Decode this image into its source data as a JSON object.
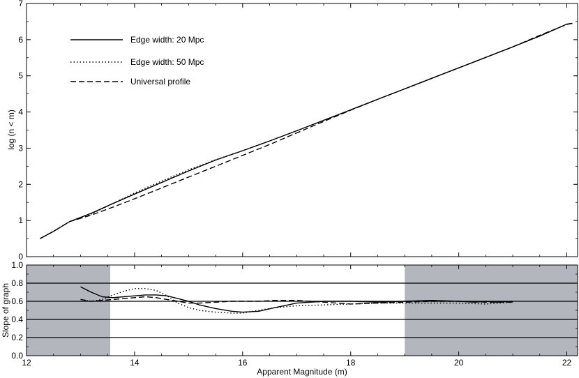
{
  "chart_data": [
    {
      "type": "line",
      "panel": "top",
      "xlabel": "",
      "ylabel": "log (n < m)",
      "xlim": [
        12,
        22.2
      ],
      "ylim": [
        0,
        7
      ],
      "x_ticks": [
        12,
        14,
        16,
        18,
        20,
        22
      ],
      "y_ticks": [
        0,
        1,
        2,
        3,
        4,
        5,
        6,
        7
      ],
      "legend_position": "top-left",
      "series": [
        {
          "name": "Edge width: 20 Mpc",
          "style": "solid",
          "x": [
            12.25,
            12.5,
            12.8,
            13.2,
            13.6,
            14.0,
            14.5,
            15.0,
            15.5,
            16.0,
            16.5,
            17.0,
            17.5,
            18.0,
            18.5,
            19.0,
            19.5,
            20.0,
            20.5,
            21.0,
            21.5,
            22.0,
            22.1
          ],
          "y": [
            0.5,
            0.7,
            0.97,
            1.2,
            1.47,
            1.73,
            2.05,
            2.37,
            2.67,
            2.93,
            3.2,
            3.48,
            3.77,
            4.06,
            4.35,
            4.64,
            4.93,
            5.22,
            5.51,
            5.8,
            6.1,
            6.43,
            6.45
          ]
        },
        {
          "name": "Edge width: 50 Mpc",
          "style": "dotted",
          "x": [
            12.25,
            12.5,
            12.8,
            13.2,
            13.6,
            14.0,
            14.5,
            15.0,
            15.5,
            16.0,
            16.5,
            17.0,
            17.5,
            18.0,
            18.5,
            19.0,
            19.5,
            20.0,
            20.5,
            21.0,
            21.5,
            22.0,
            22.1
          ],
          "y": [
            0.5,
            0.7,
            0.97,
            1.18,
            1.47,
            1.76,
            2.09,
            2.4,
            2.68,
            2.93,
            3.2,
            3.48,
            3.77,
            4.06,
            4.35,
            4.64,
            4.93,
            5.22,
            5.51,
            5.8,
            6.1,
            6.43,
            6.45
          ]
        },
        {
          "name": "Universal profile",
          "style": "dashed",
          "x": [
            12.25,
            12.5,
            12.8,
            13.2,
            13.6,
            14.0,
            14.5,
            15.0,
            15.5,
            16.0,
            16.5,
            17.0,
            17.5,
            18.0,
            18.5,
            19.0,
            19.5,
            20.0,
            20.5,
            21.0,
            21.5,
            22.0,
            22.1
          ],
          "y": [
            0.5,
            0.7,
            0.97,
            1.15,
            1.37,
            1.6,
            1.9,
            2.2,
            2.5,
            2.8,
            3.1,
            3.42,
            3.74,
            4.05,
            4.35,
            4.64,
            4.93,
            5.22,
            5.51,
            5.8,
            6.12,
            6.42,
            6.45
          ]
        }
      ]
    },
    {
      "type": "line",
      "panel": "bottom",
      "xlabel": "Apparent Magnitude (m)",
      "ylabel": "Slope of graph",
      "xlim": [
        12,
        22.2
      ],
      "ylim": [
        0,
        1.0
      ],
      "x_ticks": [
        12,
        14,
        16,
        18,
        20,
        22
      ],
      "y_ticks": [
        0.0,
        0.2,
        0.4,
        0.6,
        0.8,
        1.0
      ],
      "y_gridlines": [
        0.2,
        0.4,
        0.6,
        0.8
      ],
      "shaded_x_ranges": [
        [
          12,
          13.55
        ],
        [
          19.0,
          22.2
        ]
      ],
      "series": [
        {
          "name": "Edge width: 20 Mpc",
          "style": "solid",
          "x": [
            13.0,
            13.2,
            13.4,
            13.6,
            13.8,
            14.0,
            14.2,
            14.4,
            14.6,
            14.8,
            15.0,
            15.2,
            15.5,
            15.8,
            16.0,
            16.3,
            16.6,
            17.0,
            17.5,
            18.0,
            18.5,
            19.0,
            19.5,
            20.0,
            20.3,
            20.5,
            20.7,
            21.0
          ],
          "y": [
            0.76,
            0.7,
            0.65,
            0.64,
            0.65,
            0.66,
            0.67,
            0.67,
            0.66,
            0.63,
            0.6,
            0.56,
            0.52,
            0.49,
            0.48,
            0.49,
            0.53,
            0.58,
            0.6,
            0.6,
            0.59,
            0.6,
            0.61,
            0.6,
            0.59,
            0.6,
            0.59,
            0.6
          ]
        },
        {
          "name": "Edge width: 50 Mpc",
          "style": "dotted",
          "x": [
            13.0,
            13.2,
            13.4,
            13.6,
            13.8,
            14.0,
            14.2,
            14.4,
            14.6,
            14.8,
            15.0,
            15.2,
            15.5,
            15.8,
            16.0,
            16.3,
            16.6,
            17.0,
            17.5,
            18.0,
            18.5,
            19.0,
            19.5,
            20.0,
            20.5,
            21.0
          ],
          "y": [
            0.62,
            0.6,
            0.62,
            0.67,
            0.71,
            0.74,
            0.74,
            0.72,
            0.66,
            0.58,
            0.53,
            0.5,
            0.48,
            0.47,
            0.47,
            0.5,
            0.53,
            0.55,
            0.56,
            0.57,
            0.58,
            0.58,
            0.58,
            0.58,
            0.57,
            0.59
          ]
        },
        {
          "name": "Universal profile",
          "style": "dashed",
          "x": [
            13.0,
            13.2,
            13.4,
            13.6,
            13.8,
            14.0,
            14.2,
            14.4,
            14.6,
            14.8,
            15.0,
            15.2,
            15.5,
            15.8,
            16.0,
            16.3,
            16.6,
            17.0,
            17.5,
            18.0,
            18.5,
            19.0,
            19.5,
            20.0,
            20.5,
            21.0
          ],
          "y": [
            0.62,
            0.6,
            0.61,
            0.62,
            0.63,
            0.64,
            0.65,
            0.64,
            0.62,
            0.6,
            0.58,
            0.58,
            0.59,
            0.6,
            0.6,
            0.6,
            0.61,
            0.61,
            0.59,
            0.57,
            0.58,
            0.59,
            0.6,
            0.6,
            0.59,
            0.59
          ]
        }
      ]
    }
  ],
  "colors": {
    "shade": "#b3b6bc",
    "line": "#000000",
    "axis": "#000000"
  }
}
